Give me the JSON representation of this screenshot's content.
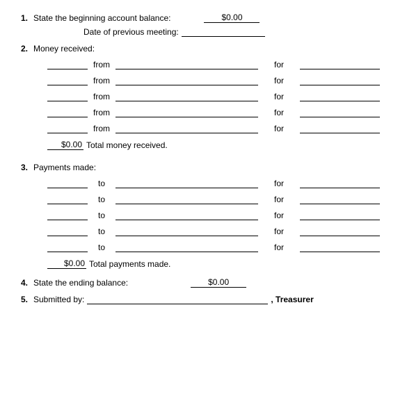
{
  "items": {
    "one": {
      "num": "1.",
      "label": "State the beginning account balance:",
      "amount": "$0.00"
    },
    "date_label": "Date of previous meeting:",
    "two": {
      "num": "2.",
      "label": "Money received:"
    },
    "from_word": "from",
    "for_word": "for",
    "to_word": "to",
    "total_received": {
      "amount": "$0.00",
      "label": "Total money received."
    },
    "three": {
      "num": "3.",
      "label": "Payments made:"
    },
    "total_payments": {
      "amount": "$0.00",
      "label": "Total payments made."
    },
    "four": {
      "num": "4.",
      "label": "State the ending balance:",
      "amount": "$0.00"
    },
    "five": {
      "num": "5.",
      "label": "Submitted by:",
      "role": ", Treasurer"
    }
  },
  "rows": 5,
  "colors": {
    "text": "#000000",
    "bg": "#ffffff",
    "line": "#000000"
  },
  "font": {
    "family": "Arial",
    "size_pt": 9
  }
}
